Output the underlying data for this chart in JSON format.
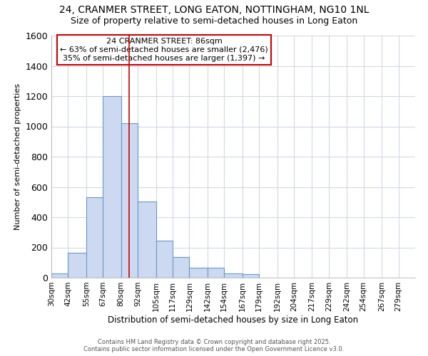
{
  "title_line1": "24, CRANMER STREET, LONG EATON, NOTTINGHAM, NG10 1NL",
  "title_line2": "Size of property relative to semi-detached houses in Long Eaton",
  "xlabel": "Distribution of semi-detached houses by size in Long Eaton",
  "ylabel": "Number of semi-detached properties",
  "annotation_title": "24 CRANMER STREET: 86sqm",
  "annotation_line2": "← 63% of semi-detached houses are smaller (2,476)",
  "annotation_line3": "35% of semi-detached houses are larger (1,397) →",
  "property_size": 86,
  "bin_edges": [
    30,
    42,
    55,
    67,
    80,
    92,
    105,
    117,
    129,
    142,
    154,
    167,
    179,
    192,
    204,
    217,
    229,
    242,
    254,
    267,
    279
  ],
  "bar_heights": [
    30,
    165,
    530,
    1200,
    1020,
    505,
    245,
    135,
    65,
    65,
    30,
    25,
    0,
    0,
    0,
    0,
    0,
    0,
    0,
    0,
    0
  ],
  "bar_color": "#ccd9f0",
  "bar_edge_color": "#6699cc",
  "vline_color": "#cc0000",
  "annotation_box_color": "#ffffff",
  "annotation_box_edge": "#cc0000",
  "plot_bg_color": "#ffffff",
  "fig_bg_color": "#ffffff",
  "grid_color": "#d0d8e8",
  "ylim": [
    0,
    1600
  ],
  "yticks": [
    0,
    200,
    400,
    600,
    800,
    1000,
    1200,
    1400,
    1600
  ],
  "footer_line1": "Contains HM Land Registry data © Crown copyright and database right 2025.",
  "footer_line2": "Contains public sector information licensed under the Open Government Licence v3.0."
}
